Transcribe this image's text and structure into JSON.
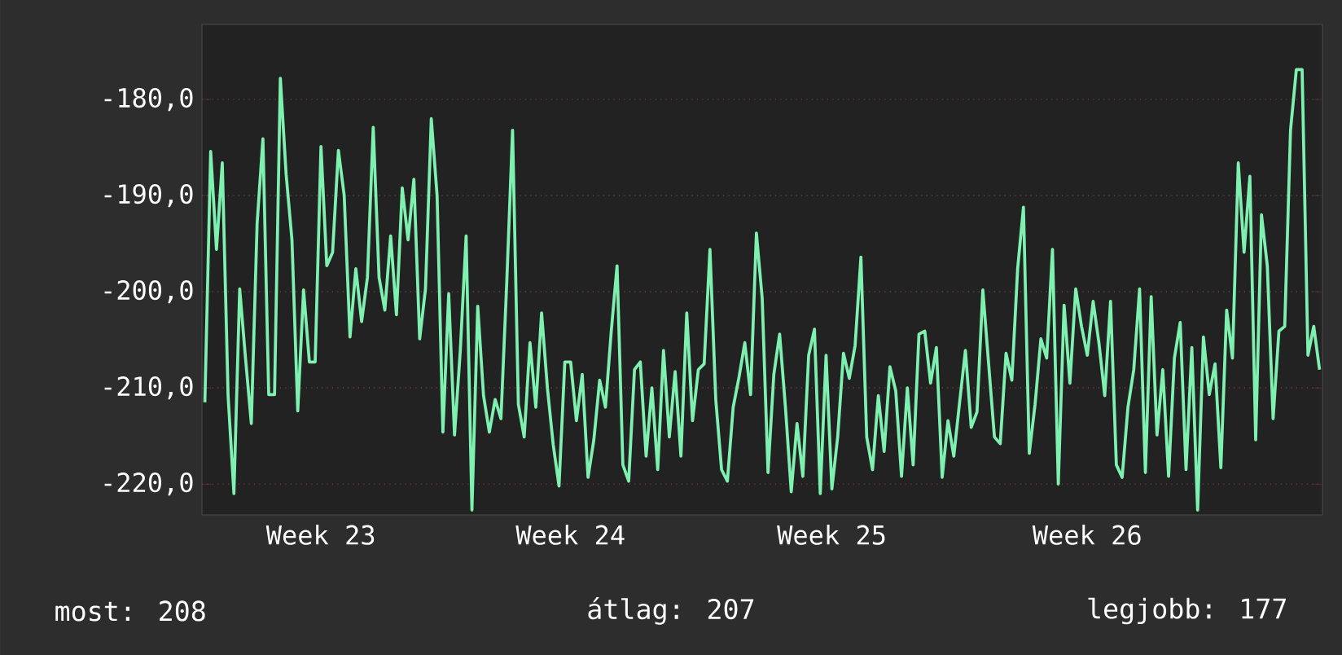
{
  "chart_data": {
    "type": "line",
    "categories": [
      null,
      null,
      null,
      null,
      null,
      null,
      null,
      null,
      null,
      null,
      null,
      null,
      null,
      null,
      null,
      null,
      null,
      null,
      null,
      null,
      "Week 23",
      null,
      null,
      null,
      null,
      null,
      null,
      null,
      null,
      null,
      null,
      null,
      null,
      null,
      null,
      null,
      null,
      null,
      null,
      null,
      null,
      null,
      null,
      null,
      null,
      null,
      null,
      null,
      null,
      null,
      null,
      null,
      null,
      null,
      null,
      null,
      null,
      null,
      null,
      null,
      null,
      null,
      null,
      "Week 24",
      null,
      null,
      null,
      null,
      null,
      null,
      null,
      null,
      null,
      null,
      null,
      null,
      null,
      null,
      null,
      null,
      null,
      null,
      null,
      null,
      null,
      null,
      null,
      null,
      null,
      null,
      null,
      null,
      null,
      null,
      null,
      null,
      null,
      null,
      null,
      null,
      null,
      null,
      null,
      null,
      null,
      null,
      null,
      null,
      "Week 25",
      null,
      null,
      null,
      null,
      null,
      null,
      null,
      null,
      null,
      null,
      null,
      null,
      null,
      null,
      null,
      null,
      null,
      null,
      null,
      null,
      null,
      null,
      null,
      null,
      null,
      null,
      null,
      null,
      null,
      null,
      null,
      null,
      null,
      null,
      null,
      null,
      null,
      null,
      null,
      null,
      null,
      null,
      null,
      "Week 26",
      null,
      null,
      null,
      null,
      null,
      null,
      null,
      null,
      null,
      null,
      null,
      null,
      null,
      null,
      null,
      null,
      null,
      null,
      null,
      null,
      null,
      null,
      null,
      null,
      null,
      null,
      null,
      null,
      null,
      null,
      null,
      null,
      null,
      null,
      null,
      null,
      null,
      null,
      null,
      null
    ],
    "series": [
      {
        "color": "#7ef0b0",
        "values": [
          -211.5,
          -185.4,
          -195.6,
          -186.6,
          -210.8,
          -221.0,
          -199.7,
          -206.9,
          -213.7,
          -192.9,
          -184.1,
          -210.7,
          -210.7,
          -177.8,
          -187.8,
          -194.6,
          -212.4,
          -199.8,
          -207.3,
          -207.3,
          -184.9,
          -197.3,
          -195.9,
          -185.3,
          -190.0,
          -204.7,
          -197.6,
          -203.1,
          -198.5,
          -182.9,
          -198.5,
          -201.9,
          -194.2,
          -202.4,
          -189.2,
          -194.6,
          -188.3,
          -204.9,
          -199.7,
          -182.0,
          -190.0,
          -214.6,
          -200.2,
          -214.9,
          -206.1,
          -194.2,
          -222.7,
          -201.5,
          -210.8,
          -214.6,
          -211.2,
          -213.2,
          -199.0,
          -183.2,
          -211.7,
          -215.1,
          -205.3,
          -212.0,
          -202.2,
          -210.0,
          -215.9,
          -220.2,
          -207.3,
          -207.3,
          -213.4,
          -208.6,
          -219.3,
          -215.4,
          -209.2,
          -212.0,
          -204.1,
          -197.3,
          -218.0,
          -219.7,
          -208.1,
          -207.3,
          -217.1,
          -210.0,
          -218.5,
          -206.1,
          -215.1,
          -208.3,
          -217.1,
          -202.2,
          -213.4,
          -208.1,
          -207.5,
          -195.6,
          -211.2,
          -218.5,
          -219.7,
          -212.0,
          -208.9,
          -205.3,
          -210.7,
          -193.9,
          -200.7,
          -218.8,
          -208.6,
          -204.4,
          -212.0,
          -220.8,
          -213.7,
          -219.2,
          -206.6,
          -203.9,
          -221.0,
          -206.6,
          -220.5,
          -215.1,
          -206.4,
          -209.0,
          -205.6,
          -196.4,
          -215.1,
          -218.5,
          -210.8,
          -216.6,
          -207.8,
          -210.3,
          -219.2,
          -210.0,
          -218.0,
          -204.4,
          -204.1,
          -209.5,
          -205.8,
          -219.3,
          -213.4,
          -217.1,
          -211.5,
          -206.1,
          -214.1,
          -212.5,
          -199.8,
          -207.5,
          -215.1,
          -215.8,
          -206.4,
          -209.2,
          -197.6,
          -191.2,
          -216.8,
          -211.7,
          -204.9,
          -206.9,
          -195.6,
          -220.0,
          -201.4,
          -209.5,
          -199.7,
          -203.6,
          -206.6,
          -201.0,
          -205.3,
          -210.8,
          -201.0,
          -218.0,
          -219.3,
          -212.0,
          -208.1,
          -199.7,
          -218.8,
          -200.5,
          -214.9,
          -208.1,
          -219.2,
          -206.9,
          -203.2,
          -218.5,
          -205.8,
          -222.7,
          -204.7,
          -210.7,
          -207.5,
          -218.3,
          -201.9,
          -206.9,
          -186.6,
          -195.9,
          -188.0,
          -215.4,
          -192.0,
          -197.3,
          -213.2,
          -204.1,
          -203.6,
          -183.2,
          -176.9,
          -176.9,
          -206.6,
          -203.6,
          -208.1
        ]
      }
    ],
    "ylim": [
      -223.2,
      -172.2
    ],
    "yticks": [
      {
        "value": -220,
        "label": "-220,0"
      },
      {
        "value": -210,
        "label": "-210,0"
      },
      {
        "value": -200,
        "label": "-200,0"
      },
      {
        "value": -190,
        "label": "-190,0"
      },
      {
        "value": -180,
        "label": "-180,0"
      }
    ],
    "grid": "y",
    "annotations": [
      "most: 208",
      "átlag: 207",
      "legjobb: 177"
    ]
  }
}
